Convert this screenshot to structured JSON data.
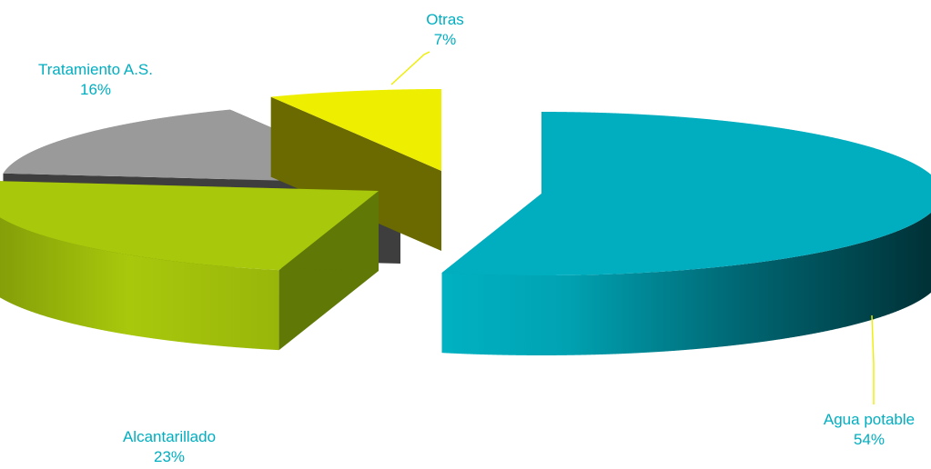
{
  "chart_data": {
    "type": "pie",
    "subtype": "3d-exploded",
    "categories": [
      "Agua potable",
      "Alcantarillado",
      "Tratamiento A.S.",
      "Otras"
    ],
    "values": [
      54,
      23,
      16,
      7
    ],
    "unit": "%",
    "data_labels": [
      {
        "category": "Agua potable",
        "value_text": "54%"
      },
      {
        "category": "Alcantarillado",
        "value_text": "23%"
      },
      {
        "category": "Tratamiento A.S.",
        "value_text": "16%"
      },
      {
        "category": "Otras",
        "value_text": "7%"
      }
    ],
    "colors": {
      "Agua potable": "#00AEC0",
      "Alcantarillado": "#A8C80C",
      "Tratamiento A.S.": "#9A9A9A",
      "Otras": "#EEEE00"
    },
    "label_color": "#00AEC0",
    "leader_color": "#EEEE00",
    "title": "",
    "legend": "none"
  }
}
